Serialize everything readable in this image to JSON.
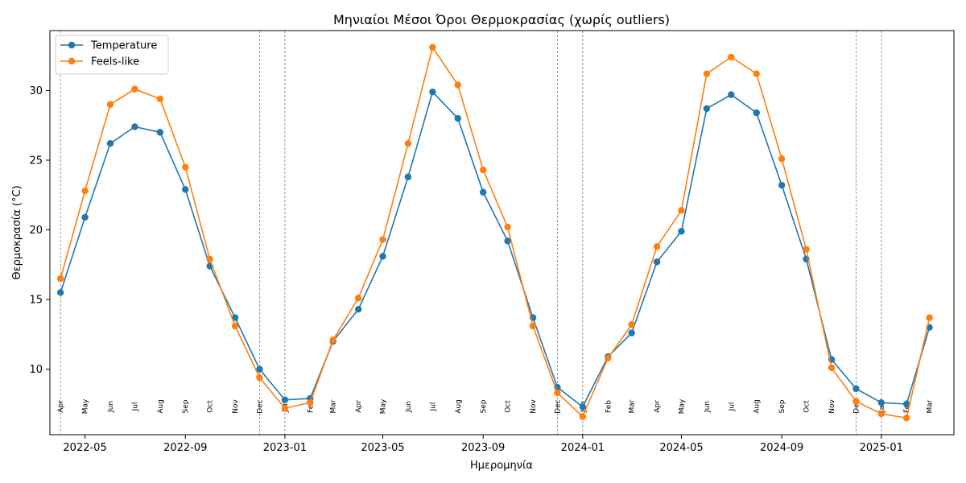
{
  "chart_data": {
    "type": "line",
    "title": "Μηνιαίοι Μέσοι Όροι Θερμοκρασίας (χωρίς outliers)",
    "xlabel": "Ημερομηνία",
    "ylabel": "Θερμοκρασία (°C)",
    "ylim": [
      5.3,
      34.3
    ],
    "xlim": [
      "2022-03-19",
      "2025-03-31"
    ],
    "grid": false,
    "legend_position": "top-left",
    "x": [
      "2022-04-01",
      "2022-05-01",
      "2022-06-01",
      "2022-07-01",
      "2022-08-01",
      "2022-09-01",
      "2022-10-01",
      "2022-11-01",
      "2022-12-01",
      "2023-01-01",
      "2023-02-01",
      "2023-03-01",
      "2023-04-01",
      "2023-05-01",
      "2023-06-01",
      "2023-07-01",
      "2023-08-01",
      "2023-09-01",
      "2023-10-01",
      "2023-11-01",
      "2023-12-01",
      "2024-01-01",
      "2024-02-01",
      "2024-03-01",
      "2024-04-01",
      "2024-05-01",
      "2024-06-01",
      "2024-07-01",
      "2024-08-01",
      "2024-09-01",
      "2024-10-01",
      "2024-11-01",
      "2024-12-01",
      "2025-01-01",
      "2025-02-01",
      "2025-03-01"
    ],
    "point_labels": [
      "Apr",
      "May",
      "Jun",
      "Jul",
      "Aug",
      "Sep",
      "Oct",
      "Nov",
      "Dec",
      "Jan",
      "Feb",
      "Mar",
      "Apr",
      "May",
      "Jun",
      "Jul",
      "Aug",
      "Sep",
      "Oct",
      "Nov",
      "Dec",
      "Jan",
      "Feb",
      "Mar",
      "Apr",
      "May",
      "Jun",
      "Jul",
      "Aug",
      "Sep",
      "Oct",
      "Nov",
      "Dec",
      "Jan",
      "Feb",
      "Mar"
    ],
    "series": [
      {
        "name": "Temperature",
        "color": "#1f77b4",
        "values": [
          15.5,
          20.9,
          26.2,
          27.4,
          27.0,
          22.9,
          17.4,
          13.7,
          10.0,
          7.8,
          7.9,
          12.0,
          14.3,
          18.1,
          23.8,
          29.9,
          28.0,
          22.7,
          19.2,
          13.7,
          8.7,
          7.3,
          10.9,
          12.6,
          17.7,
          19.9,
          28.7,
          29.7,
          28.4,
          23.2,
          17.9,
          10.7,
          8.6,
          7.6,
          7.5,
          13.0
        ]
      },
      {
        "name": "Feels-like",
        "color": "#ff7f0e",
        "values": [
          16.5,
          22.8,
          29.0,
          30.1,
          29.4,
          24.5,
          17.9,
          13.1,
          9.4,
          7.2,
          7.6,
          12.1,
          15.1,
          19.3,
          26.2,
          33.1,
          30.4,
          24.3,
          20.2,
          13.1,
          8.3,
          6.6,
          10.8,
          13.2,
          18.8,
          21.4,
          31.2,
          32.4,
          31.2,
          25.1,
          18.6,
          10.1,
          7.7,
          6.8,
          6.5,
          13.7
        ]
      }
    ],
    "x_ticks": [
      {
        "date": "2022-05-01",
        "label": "2022-05"
      },
      {
        "date": "2022-09-01",
        "label": "2022-09"
      },
      {
        "date": "2023-01-01",
        "label": "2023-01"
      },
      {
        "date": "2023-05-01",
        "label": "2023-05"
      },
      {
        "date": "2023-09-01",
        "label": "2023-09"
      },
      {
        "date": "2024-01-01",
        "label": "2024-01"
      },
      {
        "date": "2024-05-01",
        "label": "2024-05"
      },
      {
        "date": "2024-09-01",
        "label": "2024-09"
      },
      {
        "date": "2025-01-01",
        "label": "2025-01"
      }
    ],
    "y_ticks": [
      10,
      15,
      20,
      25,
      30
    ],
    "vlines": [
      "2022-04-01",
      "2022-12-01",
      "2023-01-01",
      "2023-12-01",
      "2024-01-01",
      "2024-12-01",
      "2025-01-01"
    ]
  }
}
